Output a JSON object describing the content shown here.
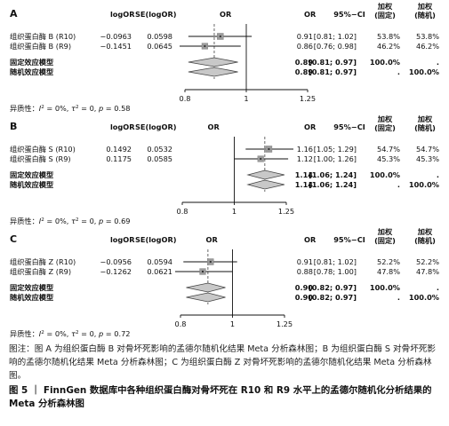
{
  "figure": {
    "panels": [
      {
        "letter": "A",
        "headers": {
          "logor": "logOR",
          "selogor": "SE(logOR)",
          "or_plot": "OR",
          "or_col": "OR",
          "ci_col": "95%−CI",
          "w_fixed": [
            "加权",
            "(固定)"
          ],
          "w_random": [
            "加权",
            "(随机)"
          ]
        },
        "studies": [
          {
            "name": "组织蛋白酶 B (R10)",
            "logor": "−0.0963",
            "se": "0.0598",
            "or_text": "0.91",
            "ci_text": "[0.81; 1.02]",
            "w_fixed": "53.8%",
            "w_random": "53.8%"
          },
          {
            "name": "组织蛋白酶 B (R9)",
            "logor": "−0.1451",
            "se": "0.0645",
            "or_text": "0.86",
            "ci_text": "[0.76; 0.98]",
            "w_fixed": "46.2%",
            "w_random": "46.2%"
          }
        ],
        "pooled": [
          {
            "name": "固定效应模型",
            "or_text": "0.89",
            "ci_text": "[0.81; 0.97]",
            "w_fixed": "100.0%",
            "w_random": "."
          },
          {
            "name": "随机效应模型",
            "or_text": "0.89",
            "ci_text": "[0.81; 0.97]",
            "w_fixed": ".",
            "w_random": "100.0%"
          }
        ],
        "heterogeneity": {
          "prefix": "异质性：",
          "i2": "0%",
          "tau2": "0",
          "p": "0.58"
        }
      },
      {
        "letter": "B",
        "headers": {
          "logor": "logOR",
          "selogor": "SE(logOR)",
          "or_plot": "OR",
          "or_col": "OR",
          "ci_col": "95%−CI",
          "w_fixed": [
            "加权",
            "(固定)"
          ],
          "w_random": [
            "加权",
            "(随机)"
          ]
        },
        "studies": [
          {
            "name": "组织蛋白酶 S (R10)",
            "logor": "0.1492",
            "se": "0.0532",
            "or_text": "1.16",
            "ci_text": "[1.05; 1.29]",
            "w_fixed": "54.7%",
            "w_random": "54.7%"
          },
          {
            "name": "组织蛋白酶 S (R9)",
            "logor": "0.1175",
            "se": "0.0585",
            "or_text": "1.12",
            "ci_text": "[1.00; 1.26]",
            "w_fixed": "45.3%",
            "w_random": "45.3%"
          }
        ],
        "pooled": [
          {
            "name": "固定效应模型",
            "or_text": "1.14",
            "ci_text": "[1.06; 1.24]",
            "w_fixed": "100.0%",
            "w_random": "."
          },
          {
            "name": "随机效应模型",
            "or_text": "1.14",
            "ci_text": "[1.06; 1.24]",
            "w_fixed": ".",
            "w_random": "100.0%"
          }
        ],
        "heterogeneity": {
          "prefix": "异质性：",
          "i2": "0%",
          "tau2": "0",
          "p": "0.69"
        }
      },
      {
        "letter": "C",
        "headers": {
          "logor": "logOR",
          "selogor": "SE(logOR)",
          "or_plot": "OR",
          "or_col": "OR",
          "ci_col": "95%−CI",
          "w_fixed": [
            "加权",
            "(固定)"
          ],
          "w_random": [
            "加权",
            "(随机)"
          ]
        },
        "studies": [
          {
            "name": "组织蛋白酶 Z (R10)",
            "logor": "−0.0956",
            "se": "0.0594",
            "or_text": "0.91",
            "ci_text": "[0.81; 1.02]",
            "w_fixed": "52.2%",
            "w_random": "52.2%"
          },
          {
            "name": "组织蛋白酶 Z (R9)",
            "logor": "−0.1262",
            "se": "0.0621",
            "or_text": "0.88",
            "ci_text": "[0.78; 1.00]",
            "w_fixed": "47.8%",
            "w_random": "47.8%"
          }
        ],
        "pooled": [
          {
            "name": "固定效应模型",
            "or_text": "0.90",
            "ci_text": "[0.82; 0.97]",
            "w_fixed": "100.0%",
            "w_random": "."
          },
          {
            "name": "随机效应模型",
            "or_text": "0.90",
            "ci_text": "[0.82; 0.97]",
            "w_fixed": ".",
            "w_random": "100.0%"
          }
        ],
        "heterogeneity": {
          "prefix": "异质性：",
          "i2": "0%",
          "tau2": "0",
          "p": "0.72"
        }
      }
    ],
    "note": "图注：图 A 为组织蛋白酶 B 对骨坏死影响的孟德尔随机化结果 Meta 分析森林图；B 为组织蛋白酶 S 对骨坏死影响的孟德尔随机化结果 Meta 分析森林图；C 为组织蛋白酶 Z 对骨坏死影响的孟德尔随机化结果 Meta 分析森林图。",
    "title": "图 5 ｜ FinnGen 数据库中各种组织蛋白酶对骨坏死在 R10 和 R9 水平上的孟德尔随机化分析结果的 Meta 分析森林图"
  },
  "chart_data": [
    {
      "type": "forest",
      "panel": "A",
      "x_scale": "log",
      "xticks": [
        0.8,
        1,
        1.25
      ],
      "xlim": [
        0.8,
        1.25
      ],
      "studies": [
        {
          "name": "组织蛋白酶 B (R10)",
          "or": 0.91,
          "lower": 0.81,
          "upper": 1.02,
          "weight_fixed": 53.8
        },
        {
          "name": "组织蛋白酶 B (R9)",
          "or": 0.86,
          "lower": 0.76,
          "upper": 0.98,
          "weight_fixed": 46.2
        }
      ],
      "pooled": [
        {
          "name": "固定效应模型",
          "or": 0.89,
          "lower": 0.81,
          "upper": 0.97
        },
        {
          "name": "随机效应模型",
          "or": 0.89,
          "lower": 0.81,
          "upper": 0.97
        }
      ],
      "grid": false
    },
    {
      "type": "forest",
      "panel": "B",
      "x_scale": "log",
      "xticks": [
        0.8,
        1,
        1.25
      ],
      "xlim": [
        0.8,
        1.25
      ],
      "studies": [
        {
          "name": "组织蛋白酶 S (R10)",
          "or": 1.16,
          "lower": 1.05,
          "upper": 1.29,
          "weight_fixed": 54.7
        },
        {
          "name": "组织蛋白酶 S (R9)",
          "or": 1.12,
          "lower": 1.0,
          "upper": 1.26,
          "weight_fixed": 45.3
        }
      ],
      "pooled": [
        {
          "name": "固定效应模型",
          "or": 1.14,
          "lower": 1.06,
          "upper": 1.24
        },
        {
          "name": "随机效应模型",
          "or": 1.14,
          "lower": 1.06,
          "upper": 1.24
        }
      ],
      "grid": false
    },
    {
      "type": "forest",
      "panel": "C",
      "x_scale": "log",
      "xticks": [
        0.8,
        1,
        1.25
      ],
      "xlim": [
        0.8,
        1.25
      ],
      "studies": [
        {
          "name": "组织蛋白酶 Z (R10)",
          "or": 0.91,
          "lower": 0.81,
          "upper": 1.02,
          "weight_fixed": 52.2
        },
        {
          "name": "组织蛋白酶 Z (R9)",
          "or": 0.88,
          "lower": 0.78,
          "upper": 1.0,
          "weight_fixed": 47.8
        }
      ],
      "pooled": [
        {
          "name": "固定效应模型",
          "or": 0.9,
          "lower": 0.82,
          "upper": 0.97
        },
        {
          "name": "随机效应模型",
          "or": 0.9,
          "lower": 0.82,
          "upper": 0.97
        }
      ],
      "grid": false
    }
  ]
}
